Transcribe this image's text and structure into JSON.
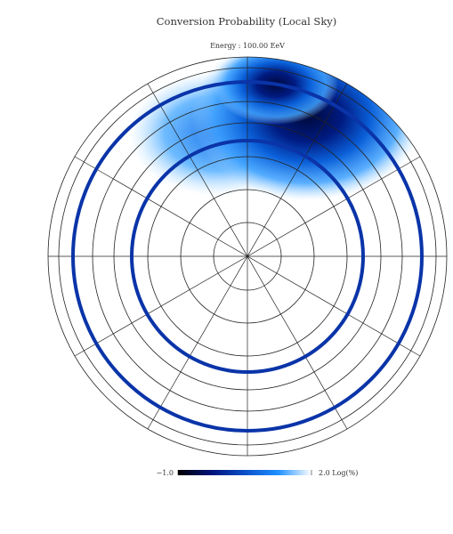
{
  "chart_data": {
    "type": "polar-heatmap",
    "title": "Conversion Probability (Local Sky)",
    "subtitle": "Energy : 100.00 EeV",
    "colorbar": {
      "lim": [
        -1,
        2
      ],
      "ticks": [
        {
          "value": -1,
          "label": "−1.0"
        },
        {
          "value": 2,
          "label": "2.0 Log(%)"
        }
      ],
      "colors": [
        "#000000",
        "#00127a",
        "#0a50c8",
        "#1e90ff",
        "#ffffff"
      ]
    }
  }
}
